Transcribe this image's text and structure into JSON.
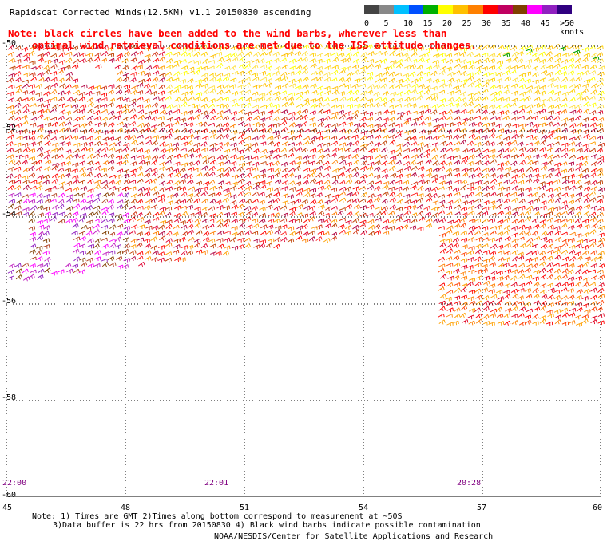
{
  "title": "Rapidscat Corrected Winds(12.5KM) v1.1 20150830 ascending",
  "note_lines": [
    "Note: black circles have been added to the wind barbs, wherever less than",
    "optimal wind retrieval conditions are met due to the ISS attitude changes."
  ],
  "legend": {
    "labels": [
      "0",
      "5",
      "10",
      "15",
      "20",
      "25",
      "30",
      "35",
      "40",
      "45",
      ">50 knots"
    ],
    "colors": [
      "#444444",
      "#888888",
      "#00c0ff",
      "#0050ff",
      "#00b000",
      "#ffff00",
      "#ffc000",
      "#ff8000",
      "#ff0000",
      "#c00060",
      "#804000",
      "#ff00ff",
      "#9020c0",
      "#300080"
    ]
  },
  "axes": {
    "y_labels": [
      "-50",
      "-52",
      "-54",
      "-56",
      "-58",
      "-60"
    ],
    "x_labels": [
      "45",
      "48",
      "51",
      "54",
      "57",
      "60"
    ]
  },
  "times": [
    "22:00",
    "22:01",
    "20:28"
  ],
  "footer": {
    "line1": "Note: 1) Times are GMT 2)Times along bottom correspond to measurement at ~50S",
    "line2": "3)Data buffer is 22 hrs from 20150830 4) Black wind barbs indicate possible contamination",
    "line3": "NOAA/NESDIS/Center for Satellite Applications and Research"
  }
}
